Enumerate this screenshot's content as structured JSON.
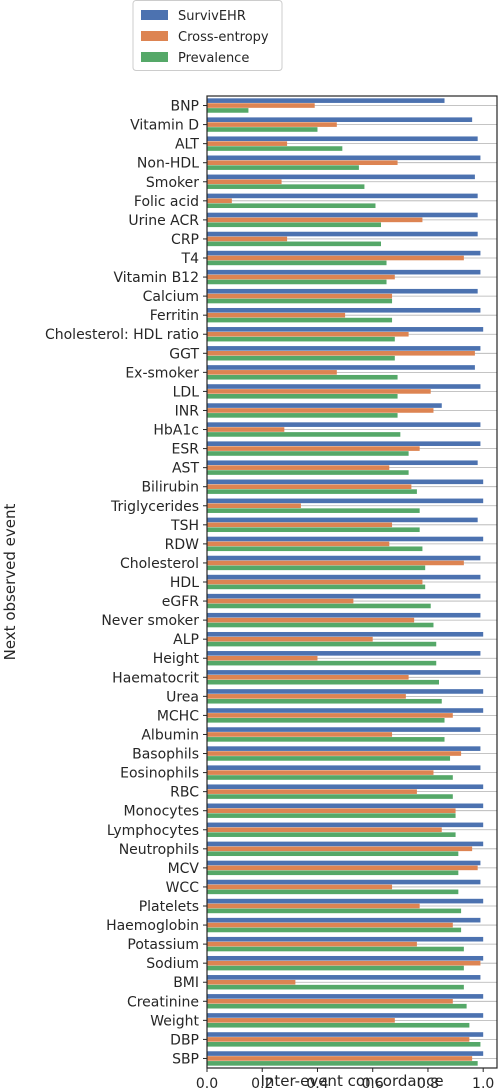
{
  "chart_data": {
    "type": "bar",
    "orientation": "horizontal",
    "xlabel": "Inter-event concordance",
    "ylabel": "Next observed event",
    "xlim": [
      0,
      1.05
    ],
    "xticks": [
      "0.0",
      "0.2",
      "0.4",
      "0.6",
      "0.8",
      "1.0"
    ],
    "xtick_values": [
      0.0,
      0.2,
      0.4,
      0.6,
      0.8,
      1.0
    ],
    "grid": "horizontal",
    "legend_position": "top-left, outside plot",
    "categories": [
      "BNP",
      "Vitamin D",
      "ALT",
      "Non-HDL",
      "Smoker",
      "Folic acid",
      "Urine ACR",
      "CRP",
      "T4",
      "Vitamin B12",
      "Calcium",
      "Ferritin",
      "Cholesterol: HDL ratio",
      "GGT",
      "Ex-smoker",
      "LDL",
      "INR",
      "HbA1c",
      "ESR",
      "AST",
      "Bilirubin",
      "Triglycerides",
      "TSH",
      "RDW",
      "Cholesterol",
      "HDL",
      "eGFR",
      "Never smoker",
      "ALP",
      "Height",
      "Haematocrit",
      "Urea",
      "MCHC",
      "Albumin",
      "Basophils",
      "Eosinophils",
      "RBC",
      "Monocytes",
      "Lymphocytes",
      "Neutrophils",
      "MCV",
      "WCC",
      "Platelets",
      "Haemoglobin",
      "Potassium",
      "Sodium",
      "BMI",
      "Creatinine",
      "Weight",
      "DBP",
      "SBP"
    ],
    "series": [
      {
        "name": "SurvivEHR",
        "color": "#4c72b0",
        "values": [
          0.86,
          0.96,
          0.98,
          0.99,
          0.97,
          0.98,
          0.98,
          0.98,
          0.99,
          0.99,
          0.98,
          0.99,
          1.0,
          0.99,
          0.97,
          0.99,
          0.85,
          0.99,
          0.99,
          0.98,
          1.0,
          1.0,
          0.98,
          1.0,
          0.99,
          0.99,
          0.99,
          0.99,
          1.0,
          0.99,
          0.99,
          1.0,
          1.0,
          0.99,
          0.99,
          0.99,
          1.0,
          1.0,
          1.0,
          1.0,
          0.99,
          0.99,
          1.0,
          0.99,
          1.0,
          1.0,
          0.99,
          1.0,
          1.0,
          1.0,
          1.0
        ]
      },
      {
        "name": "Cross-entropy",
        "color": "#dd8452",
        "values": [
          0.39,
          0.47,
          0.29,
          0.69,
          0.27,
          0.09,
          0.78,
          0.29,
          0.93,
          0.68,
          0.67,
          0.5,
          0.73,
          0.97,
          0.47,
          0.81,
          0.82,
          0.28,
          0.77,
          0.66,
          0.74,
          0.34,
          0.67,
          0.66,
          0.93,
          0.78,
          0.53,
          0.75,
          0.6,
          0.4,
          0.73,
          0.72,
          0.89,
          0.67,
          0.92,
          0.82,
          0.76,
          0.9,
          0.85,
          0.96,
          0.98,
          0.67,
          0.77,
          0.89,
          0.76,
          0.99,
          0.32,
          0.89,
          0.68,
          0.95,
          0.96
        ]
      },
      {
        "name": "Prevalence",
        "color": "#55a868",
        "values": [
          0.15,
          0.4,
          0.49,
          0.55,
          0.57,
          0.61,
          0.63,
          0.63,
          0.65,
          0.65,
          0.67,
          0.67,
          0.68,
          0.68,
          0.69,
          0.69,
          0.69,
          0.7,
          0.73,
          0.73,
          0.76,
          0.77,
          0.77,
          0.78,
          0.79,
          0.79,
          0.81,
          0.82,
          0.83,
          0.83,
          0.84,
          0.85,
          0.86,
          0.86,
          0.88,
          0.89,
          0.89,
          0.9,
          0.9,
          0.91,
          0.91,
          0.91,
          0.92,
          0.92,
          0.93,
          0.93,
          0.93,
          0.94,
          0.95,
          0.99,
          0.98
        ]
      }
    ]
  }
}
